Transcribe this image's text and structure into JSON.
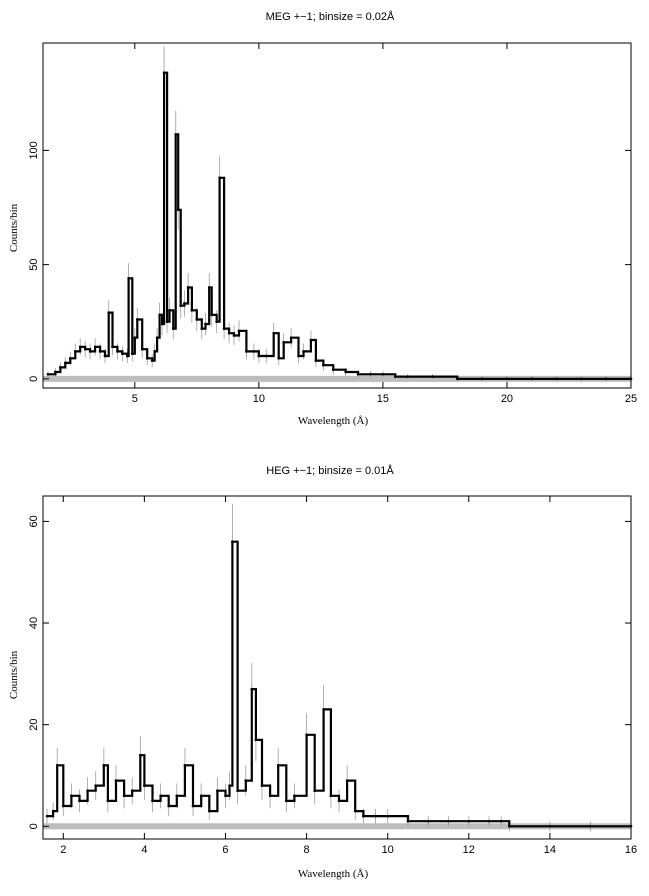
{
  "chart_data": [
    {
      "type": "line",
      "title": "MEG +−1; binsize = 0.02Å",
      "xlabel": "Wavelength (Å)",
      "ylabel": "Counts/bin",
      "xlim": [
        1.3,
        25
      ],
      "ylim": [
        -4,
        147
      ],
      "xticks": [
        5,
        10,
        15,
        20,
        25
      ],
      "yticks": [
        0,
        50,
        100
      ],
      "grid": false,
      "series": [
        {
          "x": [
            1.5,
            1.8,
            2.0,
            2.2,
            2.4,
            2.6,
            2.8,
            3.0,
            3.2,
            3.4,
            3.6,
            3.8,
            3.95,
            4.1,
            4.3,
            4.5,
            4.7,
            4.75,
            4.9,
            5.0,
            5.1,
            5.3,
            5.5,
            5.7,
            5.8,
            5.9,
            6.0,
            6.1,
            6.18,
            6.3,
            6.4,
            6.55,
            6.65,
            6.75,
            6.85,
            7.0,
            7.15,
            7.3,
            7.5,
            7.7,
            7.85,
            8.0,
            8.1,
            8.3,
            8.42,
            8.6,
            8.8,
            9.0,
            9.2,
            9.5,
            9.8,
            10.0,
            10.3,
            10.6,
            10.8,
            11.0,
            11.3,
            11.6,
            11.8,
            12.1,
            12.3,
            12.6,
            13.0,
            13.5,
            14.0,
            14.5,
            15.0,
            15.5,
            16.0,
            17.0,
            18.0,
            19.0,
            20.0,
            21.0,
            22.0,
            23.0,
            24.0,
            25.0
          ],
          "y": [
            2,
            3,
            5,
            7,
            9,
            12,
            14,
            13,
            12,
            14,
            12,
            10,
            29,
            14,
            12,
            11,
            10,
            44,
            11,
            18,
            26,
            13,
            9,
            8,
            12,
            18,
            28,
            24,
            134,
            25,
            30,
            22,
            107,
            74,
            32,
            33,
            40,
            30,
            26,
            22,
            24,
            40,
            28,
            25,
            88,
            22,
            20,
            19,
            21,
            12,
            12,
            10,
            10,
            20,
            9,
            16,
            18,
            10,
            12,
            17,
            8,
            6,
            4,
            3,
            2,
            2,
            2,
            1,
            1,
            1,
            0,
            0,
            0,
            0,
            0,
            0,
            0,
            0
          ]
        }
      ]
    },
    {
      "type": "line",
      "title": "HEG +−1; binsize = 0.01Å",
      "xlabel": "Wavelength (Å)",
      "ylabel": "Counts/bin",
      "xlim": [
        1.5,
        16
      ],
      "ylim": [
        -2.5,
        65
      ],
      "xticks": [
        2,
        4,
        6,
        8,
        10,
        12,
        14,
        16
      ],
      "yticks": [
        0,
        20,
        40,
        60
      ],
      "grid": false,
      "series": [
        {
          "x": [
            1.6,
            1.75,
            1.85,
            2.0,
            2.2,
            2.4,
            2.6,
            2.8,
            3.0,
            3.1,
            3.3,
            3.5,
            3.7,
            3.9,
            4.0,
            4.2,
            4.4,
            4.6,
            4.8,
            5.0,
            5.2,
            5.4,
            5.6,
            5.8,
            6.0,
            6.1,
            6.17,
            6.3,
            6.5,
            6.65,
            6.75,
            6.9,
            7.1,
            7.3,
            7.5,
            7.7,
            8.0,
            8.2,
            8.42,
            8.6,
            8.8,
            9.0,
            9.2,
            9.4,
            9.7,
            10.0,
            10.5,
            11.0,
            11.5,
            12.0,
            12.5,
            12.8,
            13.0,
            14.0,
            15.0,
            16.0
          ],
          "y": [
            2,
            3,
            12,
            4,
            6,
            5,
            7,
            8,
            12,
            5,
            9,
            6,
            7,
            14,
            8,
            5,
            6,
            4,
            6,
            12,
            4,
            6,
            3,
            7,
            6,
            8,
            56,
            7,
            9,
            27,
            17,
            8,
            6,
            12,
            5,
            6,
            18,
            7,
            23,
            6,
            5,
            9,
            3,
            2,
            2,
            2,
            1,
            1,
            1,
            1,
            1,
            1,
            0,
            0,
            0,
            0
          ]
        }
      ]
    }
  ]
}
